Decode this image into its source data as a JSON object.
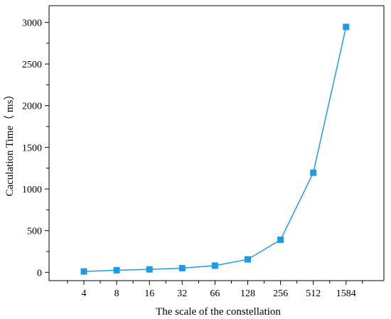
{
  "chart_data": {
    "type": "line",
    "title": "",
    "xlabel": "The scale of the constellation",
    "ylabel": "Caculation Time（ ms）",
    "categories": [
      "4",
      "8",
      "16",
      "32",
      "66",
      "128",
      "256",
      "512",
      "1584"
    ],
    "series": [
      {
        "name": "",
        "values": [
          10,
          25,
          35,
          50,
          80,
          155,
          390,
          1195,
          2945
        ],
        "color": "#1E9BE6",
        "marker": "square"
      }
    ],
    "yticks": [
      0,
      500,
      1000,
      1500,
      2000,
      2500,
      3000
    ],
    "ylim": [
      -100,
      3200
    ],
    "grid": false,
    "legend": "none"
  }
}
